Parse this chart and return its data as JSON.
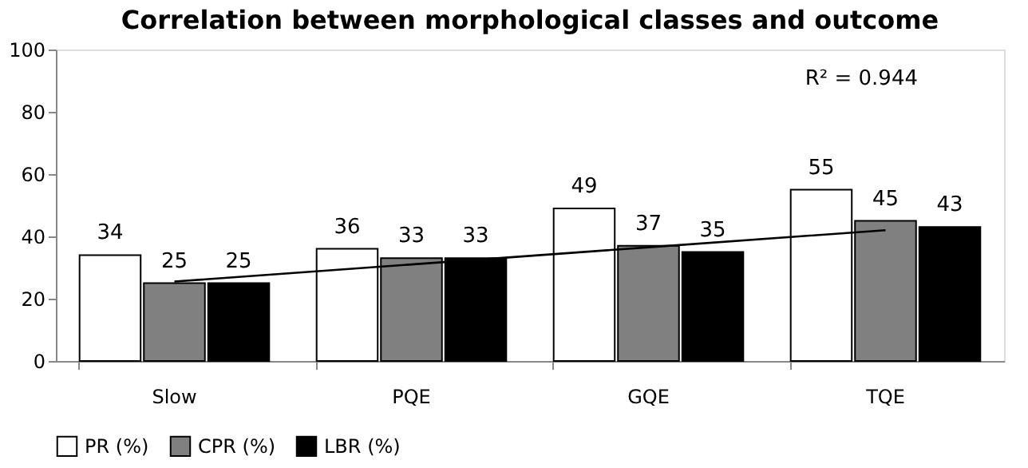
{
  "chart_data": {
    "type": "bar",
    "title": "Correlation between morphological classes and outcome",
    "categories": [
      "Slow",
      "PQE",
      "GQE",
      "TQE"
    ],
    "series": [
      {
        "name": "PR (%)",
        "color": "#ffffff",
        "values": [
          34,
          36,
          49,
          55
        ],
        "value_labels": [
          "34",
          "36",
          "49",
          "55"
        ]
      },
      {
        "name": "CPR (%)",
        "color": "#808080",
        "values": [
          25,
          33,
          37,
          45
        ],
        "value_labels": [
          "25",
          "33",
          "37",
          "45"
        ]
      },
      {
        "name": "LBR (%)",
        "color": "#000000",
        "values": [
          25,
          33,
          35,
          43
        ],
        "value_labels": [
          "25",
          "33",
          "35",
          "43"
        ]
      },
      {
        "type": "line",
        "color": "#000000",
        "values": [
          25.5,
          31,
          36.5,
          42
        ]
      }
    ],
    "ylim": [
      0,
      100
    ],
    "yticks": [
      0,
      20,
      40,
      60,
      80,
      100
    ],
    "grid": false,
    "legend": "bottom",
    "annotations": [
      "R² = 0.944"
    ]
  }
}
